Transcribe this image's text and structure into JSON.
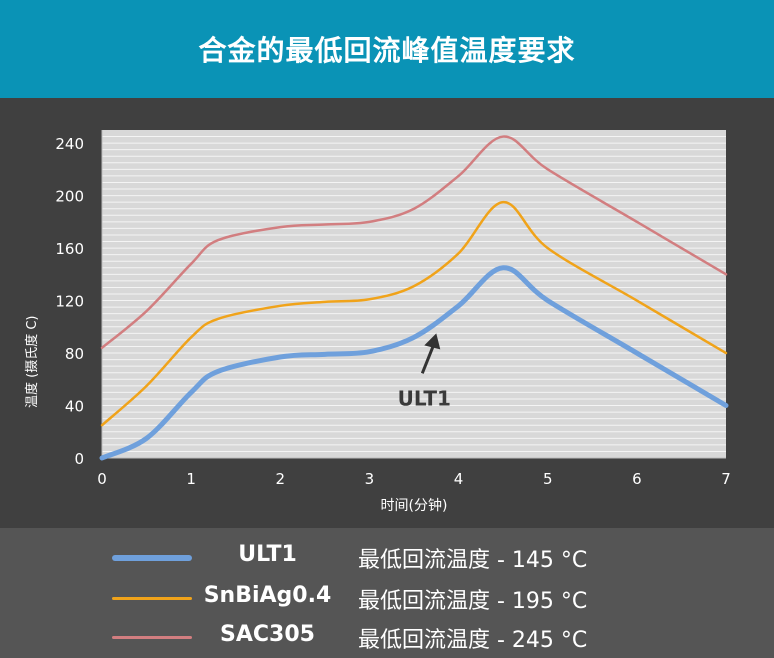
{
  "title": "合金的最低回流峰值温度要求",
  "chart_data": {
    "type": "line",
    "ylabel": "温度 (摄氏度 C)",
    "xlabel": "时间(分钟)",
    "xlim": [
      0,
      7
    ],
    "ylim": [
      0,
      250
    ],
    "x_ticks": [
      0,
      1,
      2,
      3,
      4,
      5,
      6,
      7
    ],
    "y_ticks": [
      0,
      40,
      80,
      120,
      160,
      200,
      240
    ],
    "grid": true,
    "series": [
      {
        "name": "ULT1",
        "color": "#6fa0dc",
        "width": 5,
        "points": [
          [
            0,
            0
          ],
          [
            0.5,
            15
          ],
          [
            1,
            50
          ],
          [
            1.3,
            66
          ],
          [
            2,
            77
          ],
          [
            2.5,
            79
          ],
          [
            3,
            81
          ],
          [
            3.5,
            92
          ],
          [
            4,
            116
          ],
          [
            4.5,
            145
          ],
          [
            5,
            120
          ],
          [
            6,
            80
          ],
          [
            7,
            40
          ]
        ]
      },
      {
        "name": "SnBiAg0.4",
        "color": "#f0a31a",
        "width": 2.5,
        "points": [
          [
            0,
            25
          ],
          [
            0.5,
            55
          ],
          [
            1,
            92
          ],
          [
            1.3,
            106
          ],
          [
            2,
            116
          ],
          [
            2.5,
            119
          ],
          [
            3,
            121
          ],
          [
            3.5,
            131
          ],
          [
            4,
            156
          ],
          [
            4.5,
            195
          ],
          [
            5,
            160
          ],
          [
            6,
            120
          ],
          [
            7,
            80
          ]
        ]
      },
      {
        "name": "SAC305",
        "color": "#d27e80",
        "width": 2.5,
        "points": [
          [
            0,
            84
          ],
          [
            0.5,
            112
          ],
          [
            1,
            148
          ],
          [
            1.3,
            166
          ],
          [
            2,
            176
          ],
          [
            2.5,
            178
          ],
          [
            3,
            180
          ],
          [
            3.5,
            190
          ],
          [
            4,
            215
          ],
          [
            4.5,
            245
          ],
          [
            5,
            220
          ],
          [
            6,
            180
          ],
          [
            7,
            140
          ]
        ]
      }
    ],
    "annotation": {
      "text": "ULT1",
      "arrow_to": [
        3.75,
        95
      ]
    }
  },
  "legend": [
    {
      "name": "ULT1",
      "desc": "最低回流温度 - 145 °C",
      "color": "#6fa0dc"
    },
    {
      "name": "SnBiAg0.4",
      "desc": "最低回流温度 - 195 °C",
      "color": "#f0a31a"
    },
    {
      "name": "SAC305",
      "desc": "最低回流温度 - 245 °C",
      "color": "#d27e80"
    }
  ]
}
